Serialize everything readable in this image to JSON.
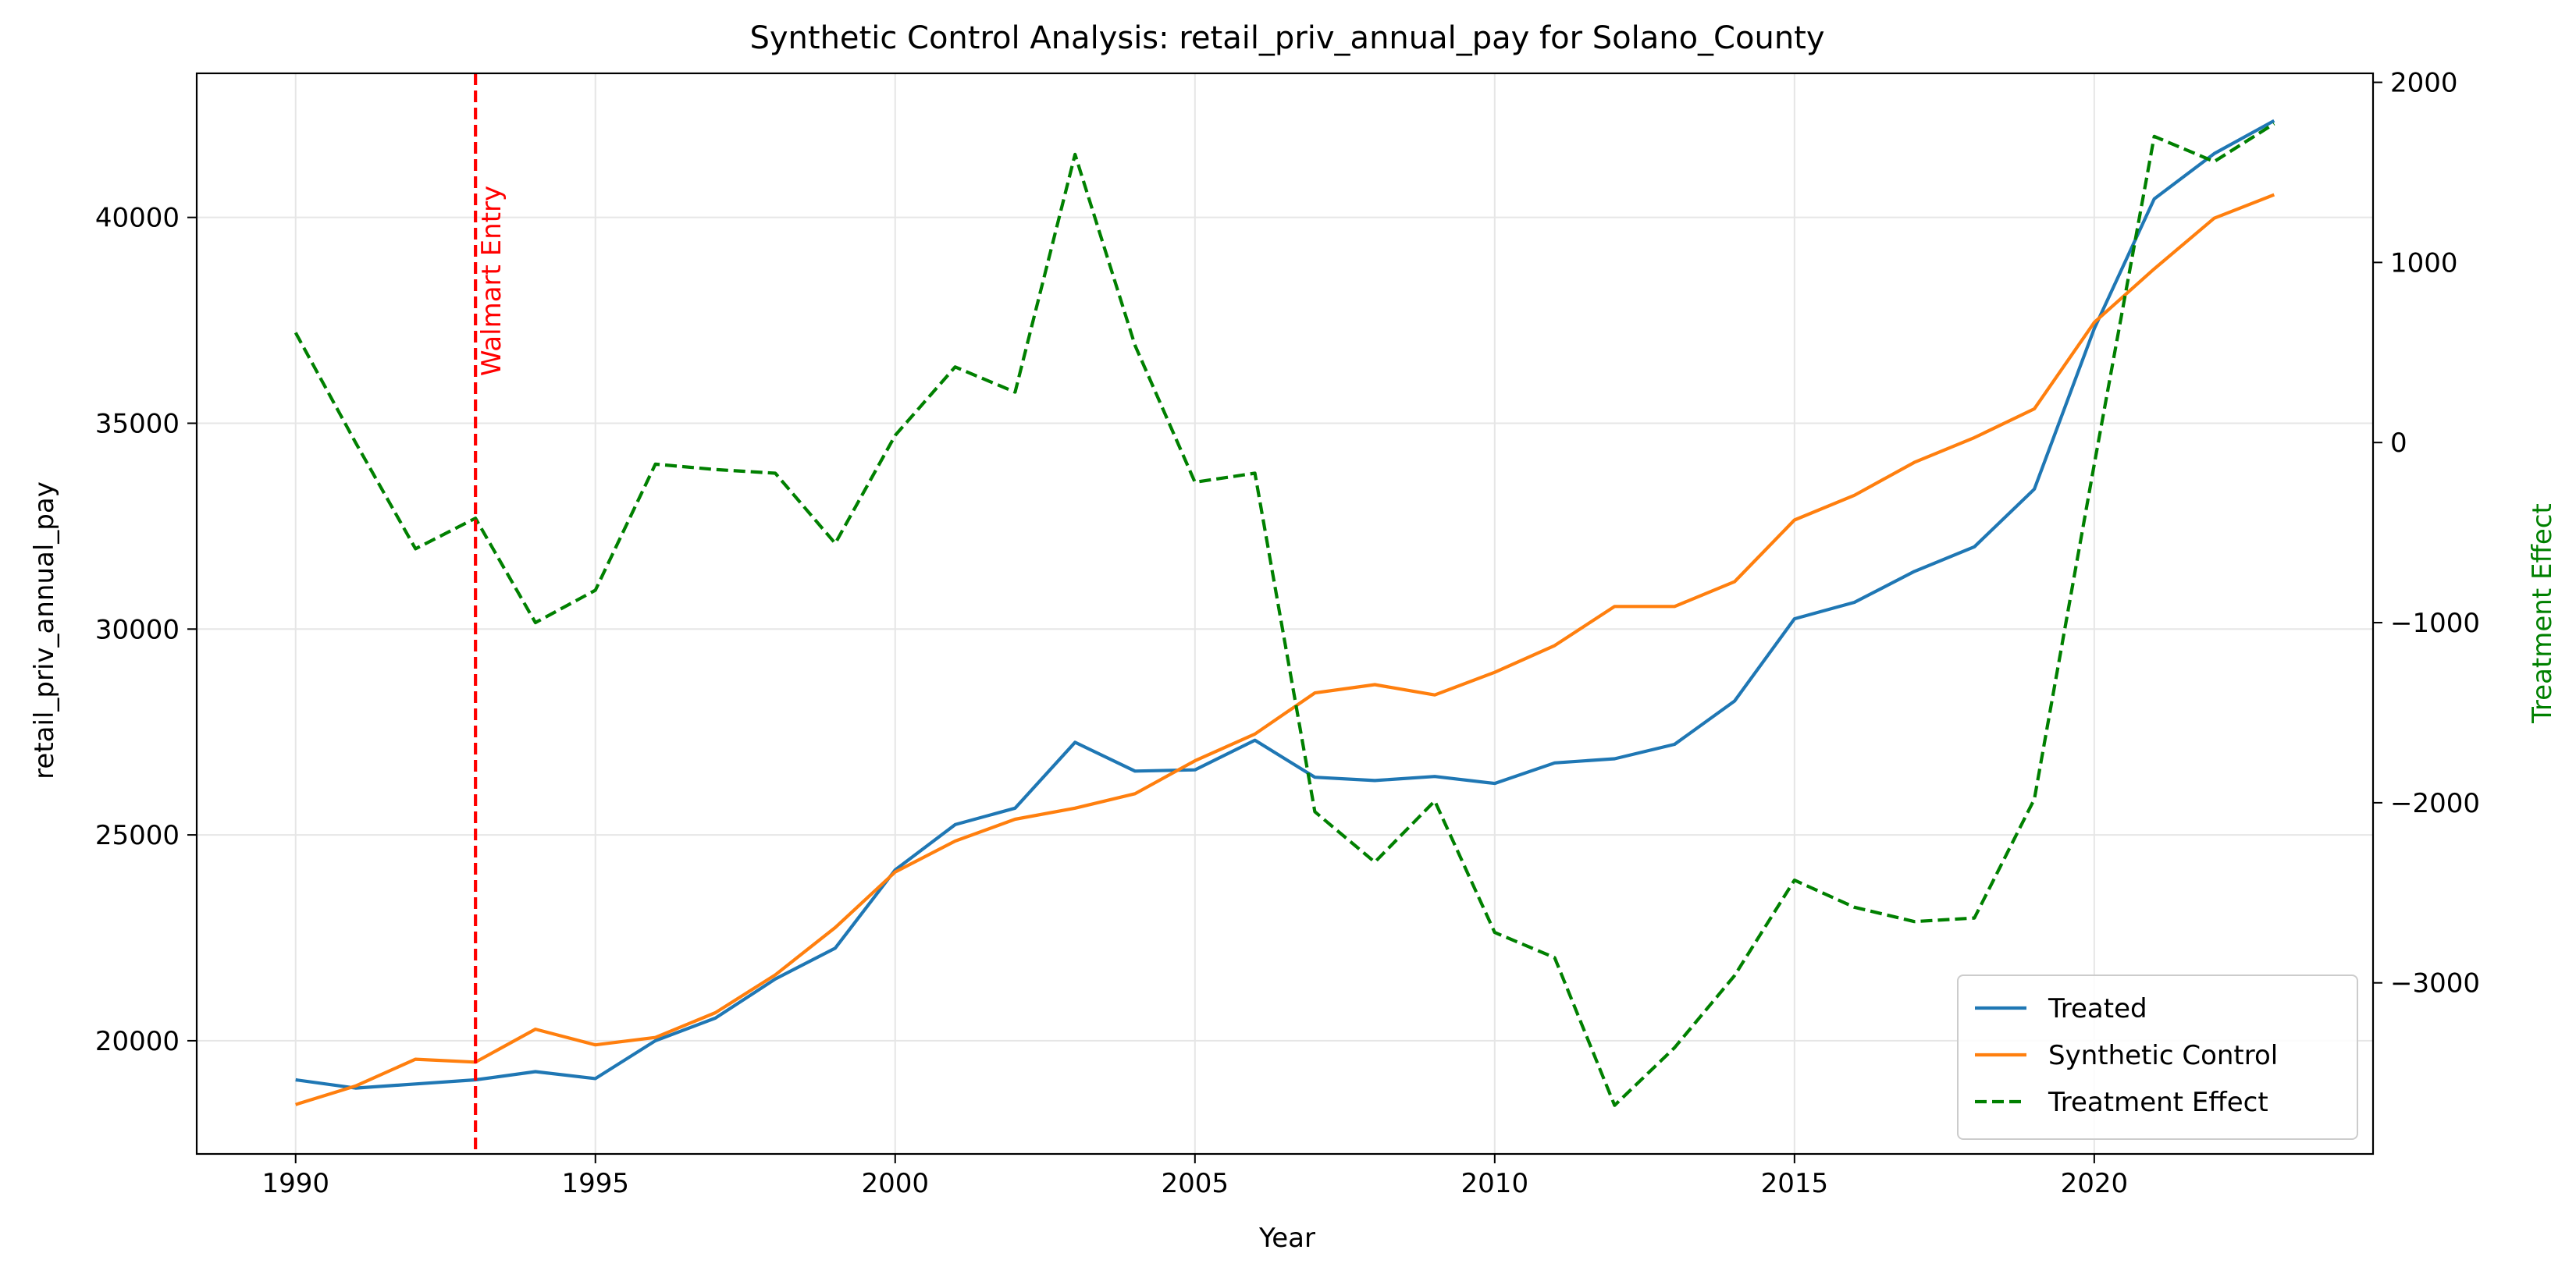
{
  "chart_data": {
    "type": "line",
    "title": "Synthetic Control Analysis: retail_priv_annual_pay for Solano_County",
    "xlabel": "Year",
    "ylabel": "retail_priv_annual_pay",
    "y2label": "Treatment Effect",
    "xlim": [
      1988.35,
      2024.65
    ],
    "ylim": [
      17250,
      43500
    ],
    "y2lim": [
      -3950,
      2050
    ],
    "x_ticks": [
      1990,
      1995,
      2000,
      2005,
      2010,
      2015,
      2020
    ],
    "y_ticks": [
      20000,
      25000,
      30000,
      35000,
      40000
    ],
    "y2_ticks": [
      -3000,
      -2000,
      -1000,
      0,
      1000,
      2000
    ],
    "grid": true,
    "legend_position": "lower-right",
    "x": [
      1990,
      1991,
      1992,
      1993,
      1994,
      1995,
      1996,
      1997,
      1998,
      1999,
      2000,
      2001,
      2002,
      2003,
      2004,
      2005,
      2006,
      2007,
      2008,
      2009,
      2010,
      2011,
      2012,
      2013,
      2014,
      2015,
      2016,
      2017,
      2018,
      2019,
      2020,
      2021,
      2022,
      2023
    ],
    "series": [
      {
        "name": "Treated",
        "axis": "left",
        "color": "#1f77b4",
        "dash": "solid",
        "values": [
          19050,
          18850,
          18950,
          19050,
          19250,
          19080,
          20000,
          20550,
          21500,
          22250,
          24150,
          25250,
          25650,
          27250,
          26550,
          26580,
          27300,
          26400,
          26320,
          26420,
          26250,
          26750,
          26850,
          27200,
          28250,
          30250,
          30650,
          31400,
          32000,
          33400,
          37300,
          40450,
          41550,
          42350
        ]
      },
      {
        "name": "Synthetic Control",
        "axis": "left",
        "color": "#ff7f0e",
        "dash": "solid",
        "values": [
          18450,
          18900,
          19550,
          19480,
          20280,
          19900,
          20080,
          20680,
          21600,
          22750,
          24100,
          24850,
          25380,
          25650,
          26000,
          26800,
          27450,
          28450,
          28650,
          28400,
          28950,
          29600,
          30550,
          30550,
          31150,
          32650,
          33250,
          34050,
          34650,
          35350,
          37450,
          38750,
          39980,
          40550
        ]
      },
      {
        "name": "Treatment Effect",
        "axis": "right",
        "color": "#008000",
        "dash": "dashed",
        "values": [
          610,
          0,
          -590,
          -420,
          -1000,
          -820,
          -120,
          -150,
          -170,
          -560,
          40,
          420,
          280,
          1600,
          540,
          -220,
          -170,
          -2050,
          -2330,
          -1990,
          -2720,
          -2860,
          -3680,
          -3360,
          -2960,
          -2430,
          -2580,
          -2660,
          -2640,
          -1980,
          -120,
          1700,
          1560,
          1770
        ]
      }
    ],
    "annotations": [
      {
        "type": "vline",
        "x": 1993,
        "color": "#ff0000",
        "label": "Walmart Entry"
      }
    ]
  }
}
